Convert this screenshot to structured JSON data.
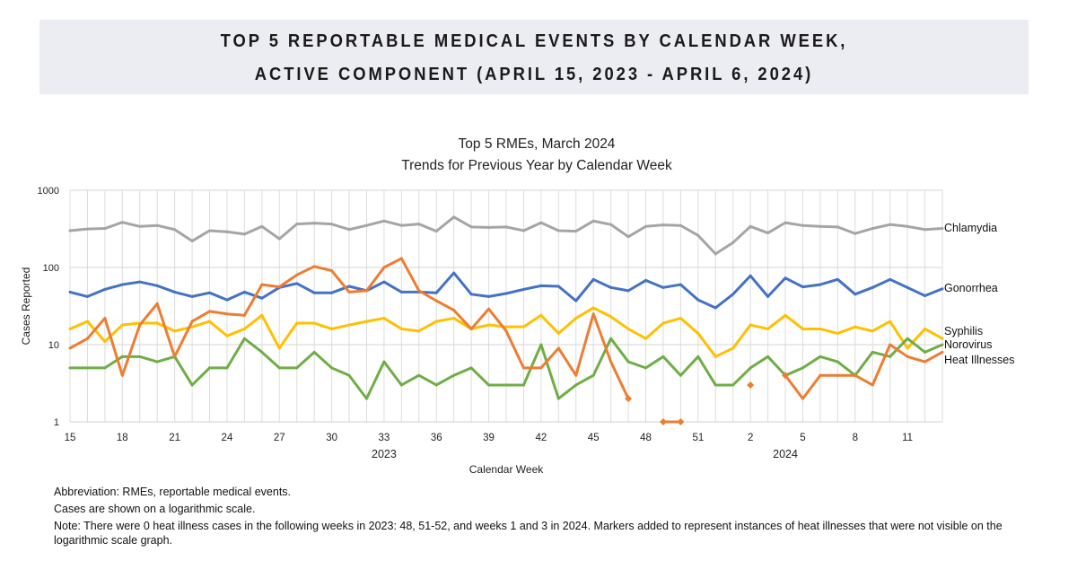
{
  "banner": {
    "line1": "TOP 5 REPORTABLE MEDICAL EVENTS BY CALENDAR WEEK,",
    "line2": "ACTIVE COMPONENT (APRIL 15, 2023 - APRIL 6, 2024)"
  },
  "chart_data": {
    "type": "line",
    "title": "Top 5 RMEs, March 2024",
    "subtitle": "Trends for Previous Year by Calendar Week",
    "xlabel": "Calendar Week",
    "ylabel": "Cases Reported",
    "yscale": "log",
    "ylim": [
      1,
      1000
    ],
    "yticks": [
      "1",
      "10",
      "100",
      "1000"
    ],
    "year_labels": [
      {
        "label": "2023",
        "at_week": "33"
      },
      {
        "label": "2024",
        "at_week": "4"
      }
    ],
    "grid": true,
    "legend": "right-end labels",
    "x": [
      "15",
      "16",
      "17",
      "18",
      "19",
      "20",
      "21",
      "22",
      "23",
      "24",
      "25",
      "26",
      "27",
      "28",
      "29",
      "30",
      "31",
      "32",
      "33",
      "34",
      "35",
      "36",
      "37",
      "38",
      "39",
      "40",
      "41",
      "42",
      "43",
      "44",
      "45",
      "46",
      "47",
      "48",
      "49",
      "50",
      "51",
      "52",
      "1",
      "2",
      "3",
      "4",
      "5",
      "6",
      "7",
      "8",
      "9",
      "10",
      "11",
      "12",
      "13"
    ],
    "xtick_labels": [
      "15",
      "18",
      "21",
      "24",
      "27",
      "30",
      "33",
      "36",
      "39",
      "42",
      "45",
      "48",
      "51",
      "2",
      "5",
      "8",
      "11"
    ],
    "series": [
      {
        "name": "Chlamydia",
        "color": "#a5a5a5",
        "values": [
          300,
          315,
          320,
          385,
          340,
          350,
          310,
          220,
          300,
          290,
          270,
          340,
          235,
          365,
          375,
          365,
          310,
          350,
          400,
          350,
          365,
          295,
          450,
          335,
          330,
          335,
          300,
          380,
          300,
          295,
          400,
          360,
          250,
          340,
          355,
          350,
          260,
          150,
          210,
          340,
          280,
          380,
          350,
          340,
          335,
          275,
          320,
          360,
          340,
          310,
          320
        ]
      },
      {
        "name": "Gonorrhea",
        "color": "#4472c4",
        "values": [
          48,
          42,
          52,
          60,
          65,
          58,
          48,
          42,
          47,
          38,
          48,
          40,
          55,
          62,
          47,
          47,
          57,
          50,
          65,
          48,
          48,
          47,
          85,
          45,
          42,
          46,
          52,
          58,
          57,
          37,
          70,
          55,
          50,
          68,
          55,
          60,
          38,
          30,
          45,
          78,
          42,
          73,
          56,
          60,
          70,
          45,
          55,
          70,
          55,
          43,
          53
        ]
      },
      {
        "name": "Syphilis",
        "color": "#ffc000",
        "values": [
          16,
          20,
          11,
          18,
          19,
          19,
          15,
          17,
          20,
          13,
          16,
          24,
          9,
          19,
          19,
          16,
          18,
          20,
          22,
          16,
          15,
          20,
          22,
          16,
          18,
          17,
          17,
          24,
          14,
          22,
          30,
          23,
          16,
          12,
          19,
          22,
          14,
          7,
          9,
          18,
          16,
          24,
          16,
          16,
          14,
          17,
          15,
          20,
          9,
          16,
          12
        ]
      },
      {
        "name": "Norovirus",
        "color": "#70ad47",
        "values": [
          5,
          5,
          5,
          7,
          7,
          6,
          7,
          3,
          5,
          5,
          12,
          8,
          5,
          5,
          8,
          5,
          4,
          2,
          6,
          3,
          4,
          3,
          4,
          5,
          3,
          3,
          3,
          10,
          2,
          3,
          4,
          12,
          6,
          5,
          7,
          4,
          7,
          3,
          3,
          5,
          7,
          4,
          5,
          7,
          6,
          4,
          8,
          7,
          12,
          8,
          10
        ]
      },
      {
        "name": "Heat Illnesses",
        "color": "#ed7d31",
        "values": [
          9,
          12,
          22,
          4,
          18,
          34,
          7,
          20,
          27,
          25,
          24,
          60,
          56,
          80,
          103,
          91,
          48,
          50,
          100,
          131,
          50,
          37,
          28,
          16,
          29,
          15,
          5,
          5,
          9,
          4,
          25,
          6,
          2,
          null,
          1,
          1,
          null,
          null,
          null,
          3,
          null,
          4,
          2,
          4,
          4,
          4,
          3,
          10,
          7,
          6,
          8
        ],
        "markers": [
          "47",
          "49",
          "50",
          "2",
          "4"
        ]
      }
    ]
  },
  "notes": {
    "abbreviation": "Abbreviation: RMEs, reportable medical events.",
    "scale": "Cases are shown on a logarithmic scale.",
    "note": "Note: There were 0 heat illness cases in the following weeks in 2023: 48, 51-52, and weeks 1 and 3 in 2024. Markers added to represent instances of heat illnesses that were not visible on the logarithmic scale graph."
  }
}
